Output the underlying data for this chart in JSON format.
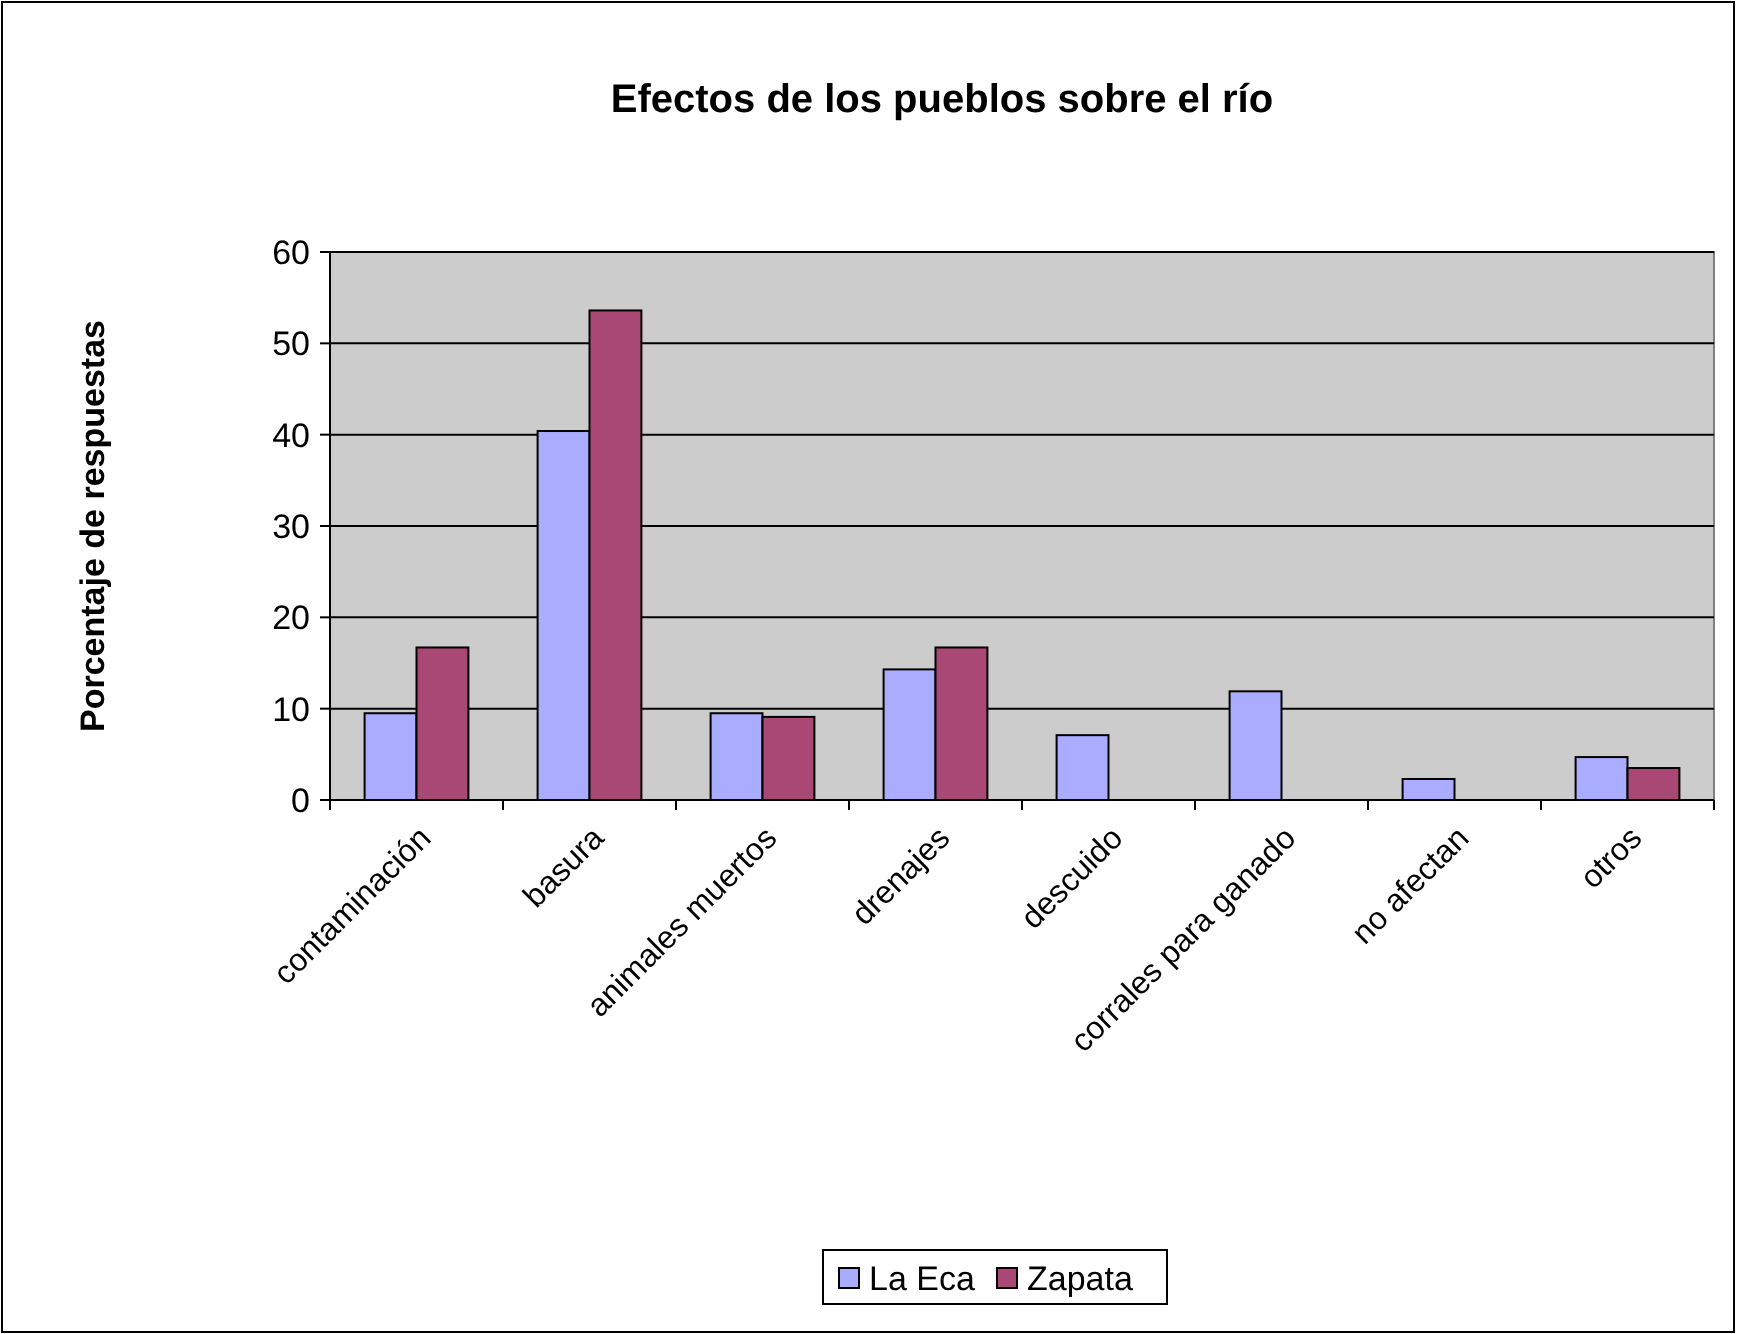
{
  "chart_data": {
    "type": "bar",
    "title": "Efectos de los pueblos sobre el río",
    "ylabel": "Porcentaje de respuestas",
    "categories": [
      "contaminación",
      "basura",
      "animales muertos",
      "drenajes",
      "descuido",
      "corrales para ganado",
      "no afectan",
      "otros"
    ],
    "series": [
      {
        "name": "La Eca",
        "color": "#a9acff",
        "values": [
          9.5,
          40.4,
          9.5,
          14.3,
          7.1,
          11.9,
          2.3,
          4.7
        ]
      },
      {
        "name": "Zapata",
        "color": "#a94874",
        "values": [
          16.7,
          53.6,
          9.1,
          16.7,
          null,
          null,
          null,
          3.5
        ]
      }
    ],
    "ylim": [
      0,
      60
    ],
    "yticks": [
      0,
      10,
      20,
      30,
      40,
      50,
      60
    ],
    "grid": "y",
    "legend": "bottom"
  }
}
